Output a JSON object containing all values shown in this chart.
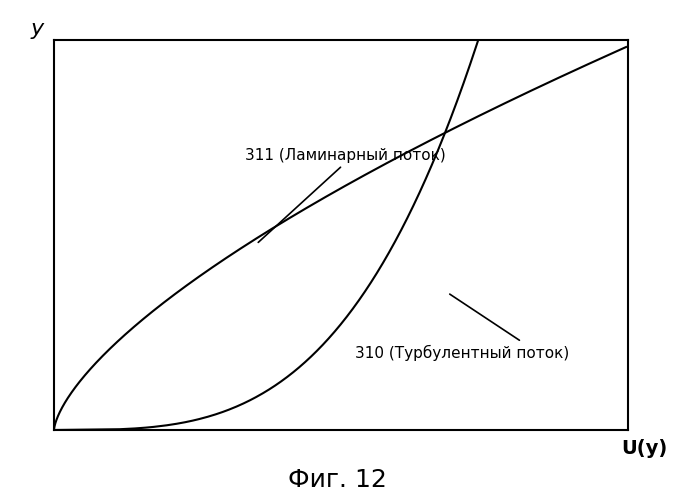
{
  "title": "Фиг. 12",
  "xlabel": "U(y)",
  "ylabel": "y",
  "label_laminar": "311 (Ламинарный поток)",
  "label_turbulent": "310 (Турбулентный поток)",
  "background_color": "#ffffff",
  "line_color": "#000000",
  "title_fontsize": 18,
  "axis_label_fontsize": 14,
  "annotation_fontsize": 11,
  "lam_exponent": 2.5,
  "turb_exponent": 0.45,
  "x_max": 1.0,
  "y_max": 1.0
}
